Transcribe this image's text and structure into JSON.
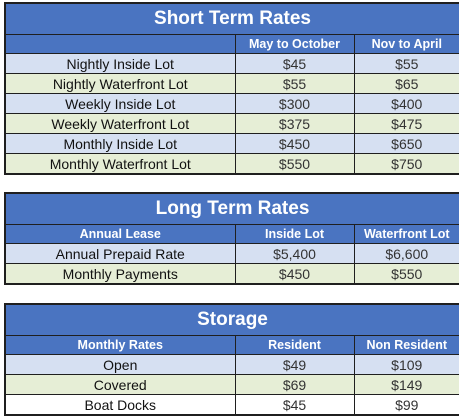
{
  "short_term": {
    "title": "Short Term Rates",
    "headers": [
      "",
      "May to October",
      "Nov to April"
    ],
    "rows": [
      {
        "label": "Nightly Inside Lot",
        "a": "$45",
        "b": "$55"
      },
      {
        "label": "Nightly Waterfront Lot",
        "a": "$55",
        "b": "$65"
      },
      {
        "label": "Weekly Inside Lot",
        "a": "$300",
        "b": "$400"
      },
      {
        "label": "Weekly Waterfront Lot",
        "a": "$375",
        "b": "$475"
      },
      {
        "label": "Monthly Inside Lot",
        "a": "$450",
        "b": "$650"
      },
      {
        "label": "Monthly Waterfront Lot",
        "a": "$550",
        "b": "$750"
      }
    ]
  },
  "long_term": {
    "title": "Long Term Rates",
    "headers": [
      "Annual Lease",
      "Inside Lot",
      "Waterfront Lot"
    ],
    "rows": [
      {
        "label": "Annual Prepaid Rate",
        "a": "$5,400",
        "b": "$6,600"
      },
      {
        "label": "Monthly Payments",
        "a": "$450",
        "b": "$550"
      }
    ]
  },
  "storage": {
    "title": "Storage",
    "headers": [
      "Monthly Rates",
      "Resident",
      "Non Resident"
    ],
    "rows": [
      {
        "label": "Open",
        "a": "$49",
        "b": "$109"
      },
      {
        "label": "Covered",
        "a": "$69",
        "b": "$149"
      },
      {
        "label": "Boat Docks",
        "a": "$45",
        "b": "$99"
      }
    ]
  },
  "colors": {
    "header_blue": "#4a74c1",
    "row_blue": "#d6e0f2",
    "row_green": "#e6eed6",
    "row_white": "#ffffff"
  }
}
